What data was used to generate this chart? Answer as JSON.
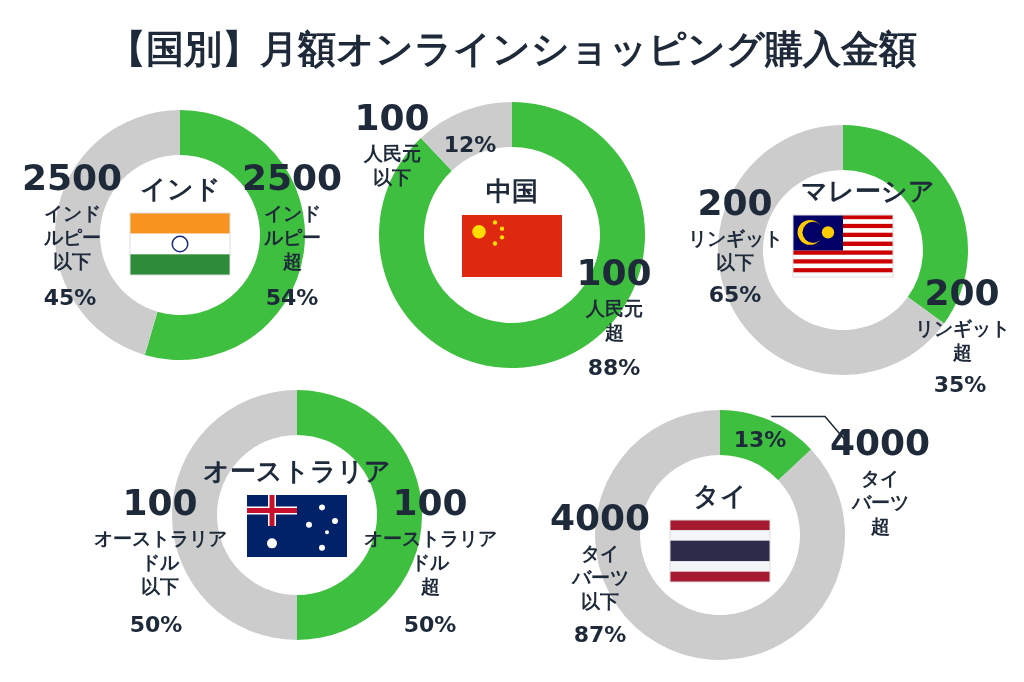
{
  "chart_data": [
    {
      "type": "donut",
      "title": "【国別】月額オンラインショッピング購入金額",
      "subtitle": "インド",
      "categories": [
        "2500インドルピー超",
        "2500インドルピー以下"
      ],
      "values": [
        54,
        45
      ],
      "value_labels": [
        "54%",
        "45%"
      ],
      "colors": [
        "#3fbf3f",
        "#cccccc"
      ]
    },
    {
      "type": "donut",
      "subtitle": "中国",
      "categories": [
        "100人民元超",
        "100人民元以下"
      ],
      "values": [
        88,
        12
      ],
      "value_labels": [
        "88%",
        "12%"
      ],
      "colors": [
        "#3fbf3f",
        "#cccccc"
      ]
    },
    {
      "type": "donut",
      "subtitle": "マレーシア",
      "categories": [
        "200リンギット超",
        "200リンギット以下"
      ],
      "values": [
        35,
        65
      ],
      "value_labels": [
        "35%",
        "65%"
      ],
      "colors": [
        "#3fbf3f",
        "#cccccc"
      ]
    },
    {
      "type": "donut",
      "subtitle": "オーストラリア",
      "categories": [
        "100オーストラリアドル超",
        "100オーストラリアドル以下"
      ],
      "values": [
        50,
        50
      ],
      "value_labels": [
        "50%",
        "50%"
      ],
      "colors": [
        "#3fbf3f",
        "#cccccc"
      ]
    },
    {
      "type": "donut",
      "subtitle": "タイ",
      "categories": [
        "4000タイバーツ超",
        "4000タイバーツ以下"
      ],
      "values": [
        13,
        87
      ],
      "value_labels": [
        "13%",
        "87%"
      ],
      "colors": [
        "#3fbf3f",
        "#cccccc"
      ]
    }
  ]
}
